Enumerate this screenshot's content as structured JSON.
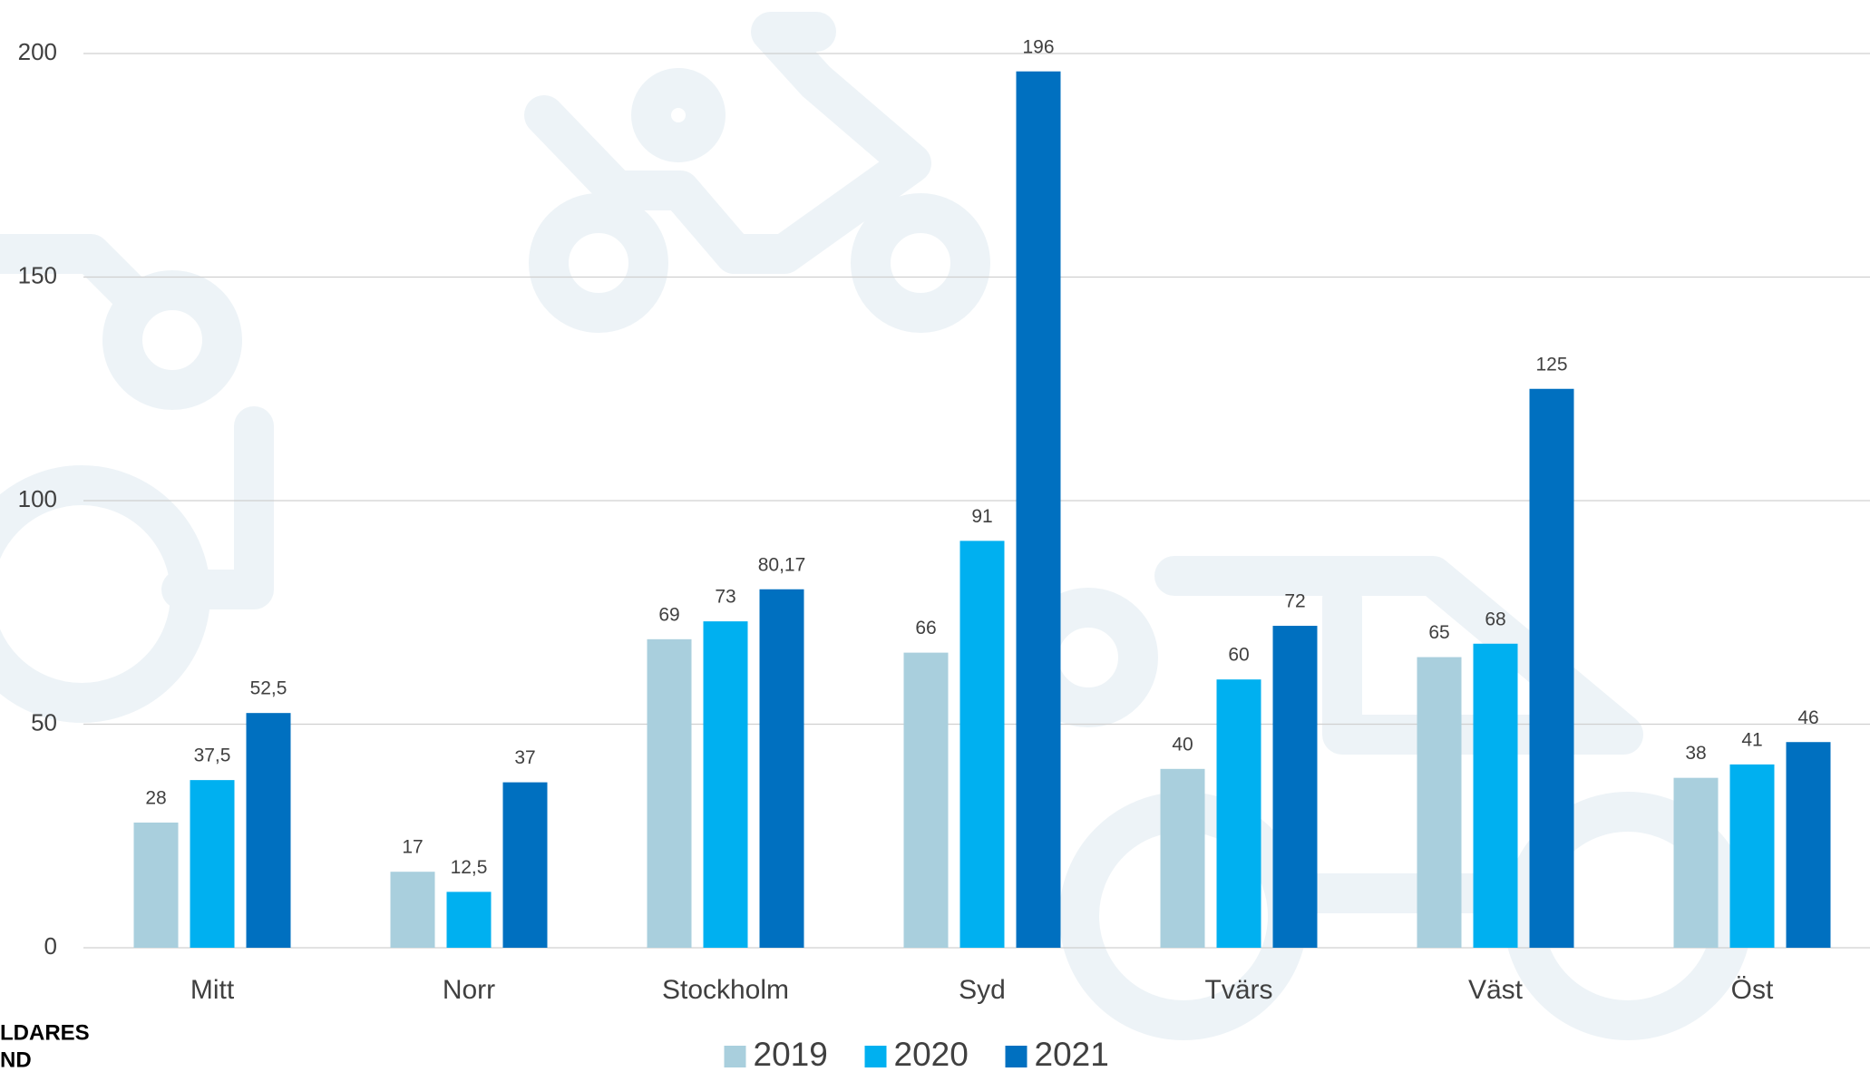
{
  "chart_data": {
    "type": "bar",
    "categories": [
      "Mitt",
      "Norr",
      "Stockholm",
      "Syd",
      "Tvärs",
      "Väst",
      "Öst"
    ],
    "series": [
      {
        "name": "2019",
        "color": "#a9cfdd",
        "values": [
          28,
          17,
          69,
          66,
          40,
          65,
          38
        ],
        "value_labels": [
          "28",
          "17",
          "69",
          "66",
          "40",
          "65",
          "38"
        ]
      },
      {
        "name": "2020",
        "color": "#00b0f0",
        "values": [
          37.5,
          12.5,
          73,
          91,
          60,
          68,
          41
        ],
        "value_labels": [
          "37,5",
          "12,5",
          "73",
          "91",
          "60",
          "68",
          "41"
        ]
      },
      {
        "name": "2021",
        "color": "#0070c0",
        "values": [
          52.5,
          37,
          80.17,
          196,
          72,
          125,
          46
        ],
        "value_labels": [
          "52,5",
          "37",
          "80,17",
          "196",
          "72",
          "125",
          "46"
        ]
      }
    ],
    "ylim": [
      0,
      200
    ],
    "yticks": [
      0,
      50,
      100,
      150,
      200
    ],
    "grid": true,
    "legend": "bottom"
  },
  "logo": {
    "lines": [
      "LDARES",
      "ND"
    ]
  }
}
